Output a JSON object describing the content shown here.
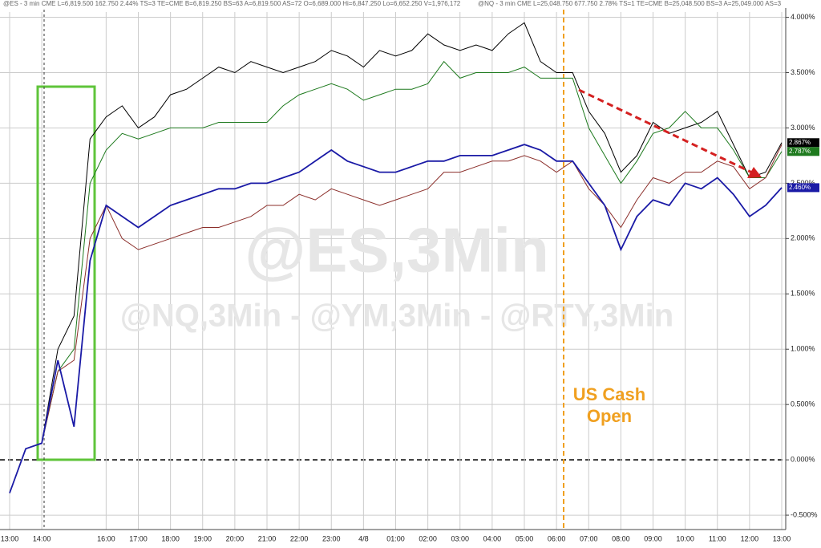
{
  "chart_data": {
    "type": "line",
    "headers": [
      "@ES - 3 min CME  L=6,819.500  162.750  2.44%  TS=3  TE=CME  B=6,819.250  BS=63  A=6,819.500  AS=72  O=6,689.000  Hi=6,847.250  Lo=6,652.250  V=1,976,172",
      "@NQ - 3 min CME  L=25,048.750  677.750  2.78%  TS=1  TE=CME  B=25,048.500  BS=3  A=25,049.000  AS=3"
    ],
    "watermark": "@ES,3Min",
    "subwatermark": "@NQ,3Min - @YM,3Min - @RTY,3Min",
    "annotation": [
      "US Cash",
      "Open"
    ],
    "categories": [
      "13:00",
      null,
      "14:00",
      null,
      null,
      null,
      "16:00",
      null,
      "17:00",
      null,
      "18:00",
      null,
      "19:00",
      null,
      "20:00",
      null,
      "21:00",
      null,
      "22:00",
      null,
      "23:00",
      null,
      "4/8",
      null,
      "01:00",
      null,
      "02:00",
      null,
      "03:00",
      null,
      "04:00",
      null,
      "05:00",
      null,
      "06:00",
      null,
      "07:00",
      null,
      "08:00",
      null,
      "09:00",
      null,
      "10:00",
      null,
      "11:00",
      null,
      "12:00",
      null,
      "13:00"
    ],
    "series": [
      {
        "color": "#000000",
        "last_label": "2.867%",
        "values": [
          -0.3,
          0.1,
          0.15,
          1.0,
          1.3,
          2.9,
          3.1,
          3.2,
          3.0,
          3.1,
          3.3,
          3.35,
          3.45,
          3.55,
          3.5,
          3.6,
          3.55,
          3.5,
          3.55,
          3.6,
          3.7,
          3.65,
          3.55,
          3.7,
          3.65,
          3.7,
          3.85,
          3.75,
          3.7,
          3.75,
          3.7,
          3.85,
          3.95,
          3.6,
          3.5,
          3.5,
          3.15,
          2.95,
          2.6,
          2.75,
          3.05,
          2.95,
          3.0,
          3.05,
          3.15,
          2.85,
          2.55,
          2.6,
          2.867
        ]
      },
      {
        "color": "#1e7a1e",
        "last_label": "2.787%",
        "values": [
          -0.3,
          0.1,
          0.15,
          0.8,
          1.0,
          2.5,
          2.8,
          2.95,
          2.9,
          2.95,
          3.0,
          3.0,
          3.0,
          3.05,
          3.05,
          3.05,
          3.05,
          3.2,
          3.3,
          3.35,
          3.4,
          3.35,
          3.25,
          3.3,
          3.35,
          3.35,
          3.4,
          3.6,
          3.45,
          3.5,
          3.5,
          3.5,
          3.55,
          3.45,
          3.45,
          3.45,
          3.0,
          2.75,
          2.5,
          2.7,
          2.95,
          3.0,
          3.15,
          3.0,
          3.0,
          2.8,
          2.55,
          2.55,
          2.787
        ]
      },
      {
        "color": "#8b2e2a",
        "values": [
          -0.3,
          0.1,
          0.15,
          0.8,
          0.9,
          2.0,
          2.3,
          2.0,
          1.9,
          1.95,
          2.0,
          2.05,
          2.1,
          2.1,
          2.15,
          2.2,
          2.3,
          2.3,
          2.4,
          2.35,
          2.45,
          2.4,
          2.35,
          2.3,
          2.35,
          2.4,
          2.45,
          2.6,
          2.6,
          2.65,
          2.7,
          2.7,
          2.75,
          2.7,
          2.6,
          2.7,
          2.45,
          2.3,
          2.1,
          2.35,
          2.55,
          2.5,
          2.6,
          2.6,
          2.7,
          2.65,
          2.45,
          2.55,
          2.85
        ]
      },
      {
        "color": "#1a1aa6",
        "last_label": "2.460%",
        "values": [
          -0.3,
          0.1,
          0.15,
          0.9,
          0.3,
          1.8,
          2.3,
          2.2,
          2.1,
          2.2,
          2.3,
          2.35,
          2.4,
          2.45,
          2.45,
          2.5,
          2.5,
          2.55,
          2.6,
          2.7,
          2.8,
          2.7,
          2.65,
          2.6,
          2.6,
          2.65,
          2.7,
          2.7,
          2.75,
          2.75,
          2.75,
          2.8,
          2.85,
          2.8,
          2.7,
          2.7,
          2.5,
          2.3,
          1.9,
          2.2,
          2.35,
          2.3,
          2.5,
          2.45,
          2.55,
          2.4,
          2.2,
          2.3,
          2.46
        ]
      }
    ],
    "ylim": [
      -0.63,
      4.12
    ],
    "yticks": [
      {
        "value": -0.5,
        "label": "-0.500%"
      },
      {
        "value": 0,
        "label": "0.000%"
      },
      {
        "value": 0.5,
        "label": "0.500%"
      },
      {
        "value": 1,
        "label": "1.000%"
      },
      {
        "value": 1.5,
        "label": "1.500%"
      },
      {
        "value": 2,
        "label": "2.000%"
      },
      {
        "value": 2.5,
        "label": "2.500%"
      },
      {
        "value": 3,
        "label": "3.000%"
      },
      {
        "value": 3.5,
        "label": "3.500%"
      },
      {
        "value": 4,
        "label": "4.000%"
      }
    ],
    "grid": true
  }
}
